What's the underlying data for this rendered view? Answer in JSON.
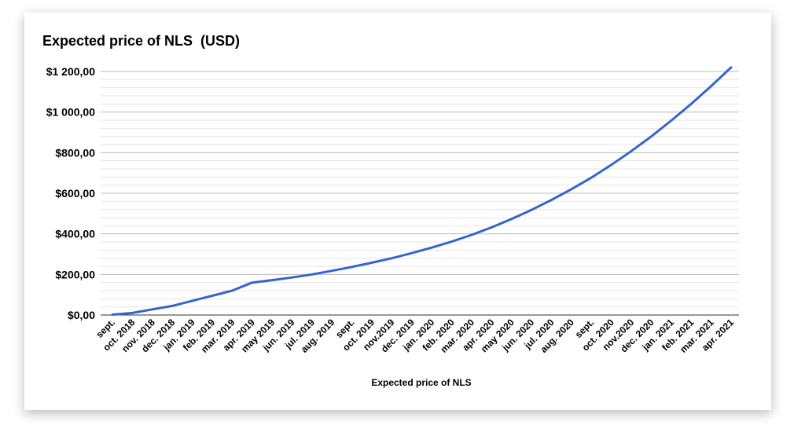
{
  "chart_data": {
    "type": "line",
    "title": "Expected price of NLS  (USD)",
    "xlabel": "Expected price of NLS",
    "ylabel": "",
    "ylim": [
      0,
      1200
    ],
    "yticks": [
      0,
      200,
      400,
      600,
      800,
      1000,
      1200
    ],
    "ytick_labels": [
      "$0,00",
      "$200,00",
      "$400,00",
      "$600,00",
      "$800,00",
      "$1 000,00",
      "$1 200,00"
    ],
    "grid": true,
    "legend": "none",
    "categories": [
      "sept.",
      "oct. 2018",
      "nov. 2018",
      "dec. 2018",
      "jan. 2019",
      "feb. 2019",
      "mar. 2019",
      "apr. 2019",
      "may 2019",
      "jun. 2019",
      "jul. 2019",
      "aug. 2019",
      "sept.",
      "oct. 2019",
      "nov.2019",
      "dec. 2019",
      "jan. 2020",
      "feb. 2020",
      "mar. 2020",
      "apr. 2020",
      "may 2020",
      "jun. 2020",
      "jul. 2020",
      "aug. 2020",
      "sept.",
      "oct. 2020",
      "nov.2020",
      "dec. 2020",
      "jan. 2021",
      "feb. 2021",
      "mar. 2021",
      "apr. 2021"
    ],
    "series": [
      {
        "color": "#3366cc",
        "values": [
          2,
          10,
          28,
          45,
          70,
          95,
          120,
          160,
          172,
          185,
          200,
          218,
          237,
          258,
          280,
          305,
          332,
          362,
          395,
          432,
          473,
          518,
          567,
          620,
          677,
          740,
          808,
          880,
          958,
          1040,
          1128,
          1220
        ]
      }
    ]
  }
}
